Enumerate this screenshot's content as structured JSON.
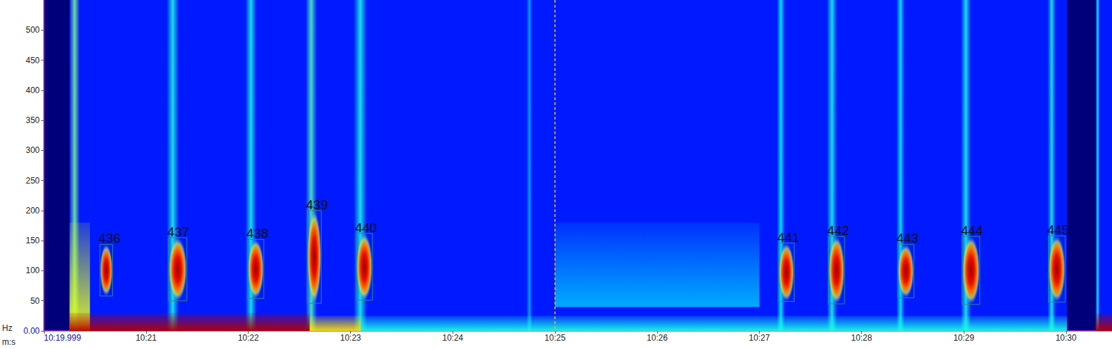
{
  "chart_data": {
    "type": "spectrogram",
    "x_label": "m:s",
    "y_label": "Hz",
    "xlim": [
      619.999,
      630.45
    ],
    "xticks": [
      {
        "value": 619.999,
        "label": "10:19.999"
      },
      {
        "value": 621,
        "label": "10:21"
      },
      {
        "value": 622,
        "label": "10:22"
      },
      {
        "value": 623,
        "label": "10:23"
      },
      {
        "value": 624,
        "label": "10:24"
      },
      {
        "value": 625,
        "label": "10:25"
      },
      {
        "value": 626,
        "label": "10:26"
      },
      {
        "value": 627,
        "label": "10:27"
      },
      {
        "value": 628,
        "label": "10:28"
      },
      {
        "value": 629,
        "label": "10:29"
      },
      {
        "value": 630,
        "label": "10:30"
      }
    ],
    "ylim": [
      0,
      550
    ],
    "yticks": [
      {
        "value": 0,
        "label": "0.00"
      },
      50,
      100,
      150,
      200,
      250,
      300,
      350,
      400,
      450,
      500
    ],
    "grid": false,
    "coverage": [
      {
        "start": 620.25,
        "end": 630.01,
        "level": 0.15
      },
      {
        "start": 630.29,
        "end": 630.45,
        "level": 0.15
      }
    ],
    "noise": [
      {
        "start": 625.0,
        "end": 627.0,
        "low": 40,
        "high": 180,
        "level": 0.3
      },
      {
        "start": 620.25,
        "end": 620.45,
        "low": 0,
        "high": 180,
        "level": 0.6
      },
      {
        "start": 620.25,
        "end": 622.6,
        "low": 0,
        "high": 30,
        "level": 0.95
      },
      {
        "start": 622.6,
        "end": 623.1,
        "low": 0,
        "high": 25,
        "level": 0.65
      },
      {
        "start": 623.1,
        "end": 630.01,
        "low": 0,
        "high": 25,
        "level": 0.4
      },
      {
        "start": 630.29,
        "end": 630.45,
        "low": 0,
        "high": 30,
        "level": 0.95
      }
    ],
    "bands": [
      {
        "start": 620.25,
        "end": 620.35,
        "level": 0.5
      },
      {
        "start": 621.2,
        "end": 621.32,
        "level": 0.4
      },
      {
        "start": 621.97,
        "end": 622.08,
        "level": 0.4
      },
      {
        "start": 622.56,
        "end": 622.67,
        "level": 0.45
      },
      {
        "start": 623.03,
        "end": 623.16,
        "level": 0.4
      },
      {
        "start": 624.72,
        "end": 624.78,
        "level": 0.3
      },
      {
        "start": 627.17,
        "end": 627.25,
        "level": 0.38
      },
      {
        "start": 627.66,
        "end": 627.76,
        "level": 0.4
      },
      {
        "start": 628.34,
        "end": 628.42,
        "level": 0.38
      },
      {
        "start": 628.97,
        "end": 629.07,
        "level": 0.4
      },
      {
        "start": 629.82,
        "end": 629.9,
        "level": 0.4
      },
      {
        "start": 630.29,
        "end": 630.33,
        "level": 0.4
      }
    ],
    "selections": [
      {
        "label": "436",
        "start": 620.548,
        "end": 620.671,
        "low": 58,
        "high": 144
      },
      {
        "label": "437",
        "start": 621.219,
        "end": 621.398,
        "low": 50,
        "high": 155
      },
      {
        "label": "438",
        "start": 621.994,
        "end": 622.151,
        "low": 54,
        "high": 152
      },
      {
        "label": "439",
        "start": 622.576,
        "end": 622.713,
        "low": 46,
        "high": 200
      },
      {
        "label": "440",
        "start": 623.056,
        "end": 623.214,
        "low": 51,
        "high": 162
      },
      {
        "label": "441",
        "start": 627.189,
        "end": 627.34,
        "low": 49,
        "high": 146
      },
      {
        "label": "442",
        "start": 627.676,
        "end": 627.833,
        "low": 45,
        "high": 157
      },
      {
        "label": "443",
        "start": 628.354,
        "end": 628.512,
        "low": 55,
        "high": 144
      },
      {
        "label": "444",
        "start": 628.985,
        "end": 629.156,
        "low": 44,
        "high": 157
      },
      {
        "label": "445",
        "start": 629.828,
        "end": 629.993,
        "low": 48,
        "high": 158
      }
    ],
    "cursor": 625.0
  }
}
